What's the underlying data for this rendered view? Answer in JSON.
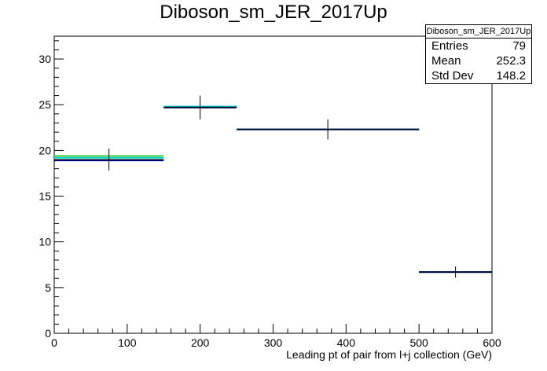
{
  "chart_data": {
    "type": "histogram",
    "title": "Diboson_sm_JER_2017Up",
    "xlabel": "Leading pt of pair from l+j collection (GeV)",
    "ylabel": "",
    "xlim": [
      0,
      600
    ],
    "ylim": [
      0,
      32.5
    ],
    "x_ticks": [
      0,
      100,
      200,
      300,
      400,
      500,
      600
    ],
    "y_ticks": [
      0,
      5,
      10,
      15,
      20,
      25,
      30
    ],
    "bins": [
      {
        "low": 0,
        "high": 150,
        "value": 19.0,
        "err": 1.2
      },
      {
        "low": 150,
        "high": 250,
        "value": 24.7,
        "err": 1.3
      },
      {
        "low": 250,
        "high": 500,
        "value": 22.3,
        "err": 1.1
      },
      {
        "low": 500,
        "high": 600,
        "value": 6.7,
        "err": 0.6
      }
    ],
    "overlays": [
      {
        "color": "#00d0c0",
        "values": [
          19.2,
          24.8,
          22.3,
          6.7
        ]
      },
      {
        "color": "#44cc44",
        "values": [
          19.4,
          24.7,
          22.3,
          6.7
        ]
      },
      {
        "color": "#000088",
        "values": [
          18.9,
          24.7,
          22.3,
          6.7
        ]
      }
    ],
    "stats": {
      "name": "Diboson_sm_JER_2017Up",
      "entries_label": "Entries",
      "entries": "79",
      "mean_label": "Mean",
      "mean": "252.3",
      "stddev_label": "Std Dev",
      "stddev": "148.2"
    }
  }
}
